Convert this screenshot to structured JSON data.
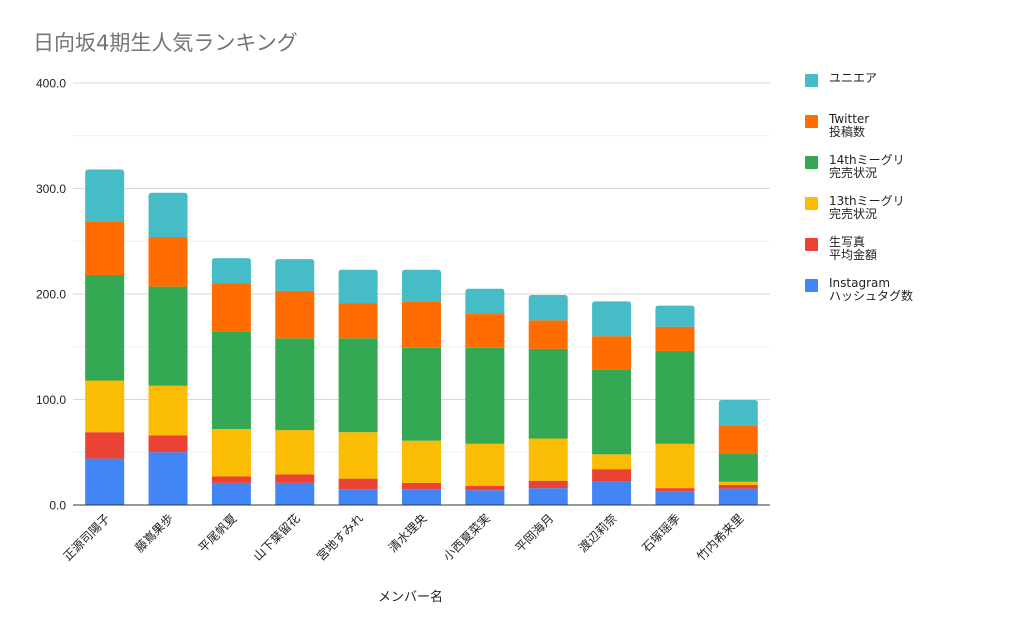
{
  "chart_data": {
    "type": "bar",
    "stacked": true,
    "title": "日向坂4期生人気ランキング",
    "xlabel": "メンバー名",
    "ylabel": "",
    "ylim": [
      0,
      400
    ],
    "yticks": [
      0,
      100,
      200,
      300,
      400
    ],
    "ytick_labels": [
      "0.0",
      "100.0",
      "200.0",
      "300.0",
      "400.0"
    ],
    "grid": true,
    "legend_position": "right",
    "categories": [
      "正源司陽子",
      "藤嶌果歩",
      "平尾帆夏",
      "山下葉留花",
      "宮地すみれ",
      "清水理央",
      "小西夏菜実",
      "平岡海月",
      "渡辺莉奈",
      "石塚瑶季",
      "竹内希来里"
    ],
    "series": [
      {
        "name": "Instagram\nハッシュタグ数",
        "color": "#4285F4",
        "values": [
          44,
          50,
          21,
          21,
          15,
          15,
          14,
          16,
          22,
          13,
          15.5
        ]
      },
      {
        "name": "生写真\n平均金額",
        "color": "#EA4335",
        "values": [
          25,
          16,
          6,
          8,
          10,
          6,
          4,
          7,
          12,
          3,
          3.5
        ]
      },
      {
        "name": "13thミーグリ\n完売状況",
        "color": "#FBBC04",
        "values": [
          49,
          47,
          45,
          42,
          44,
          40,
          40,
          40,
          14,
          42,
          3
        ]
      },
      {
        "name": "14thミーグリ\n完売状況",
        "color": "#34A853",
        "values": [
          100,
          94,
          92,
          87,
          89,
          88,
          91,
          85,
          80,
          88,
          27
        ]
      },
      {
        "name": "Twitter\n投稿数",
        "color": "#FF6D01",
        "values": [
          51,
          47,
          46,
          45,
          33,
          44,
          32,
          27,
          32,
          23,
          26.5
        ]
      },
      {
        "name": "ユニエア",
        "color": "#46BDC6",
        "values": [
          49,
          42,
          24,
          30,
          32,
          30,
          24,
          24,
          33,
          20,
          24
        ]
      }
    ]
  },
  "legend_order": [
    5,
    4,
    3,
    2,
    1,
    0
  ]
}
